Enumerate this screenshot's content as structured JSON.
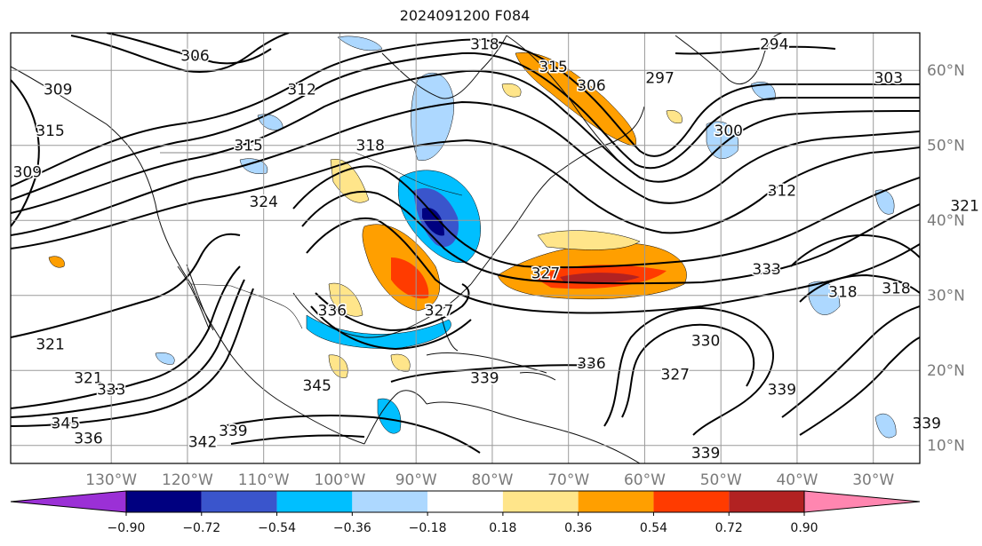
{
  "title": "2024091200 F084",
  "map": {
    "lon_ticks": [
      {
        "lon": -130,
        "label": "130°W"
      },
      {
        "lon": -120,
        "label": "120°W"
      },
      {
        "lon": -110,
        "label": "110°W"
      },
      {
        "lon": -100,
        "label": "100°W"
      },
      {
        "lon": -90,
        "label": "90°W"
      },
      {
        "lon": -80,
        "label": "80°W"
      },
      {
        "lon": -70,
        "label": "70°W"
      },
      {
        "lon": -60,
        "label": "60°W"
      },
      {
        "lon": -50,
        "label": "50°W"
      },
      {
        "lon": -40,
        "label": "40°W"
      },
      {
        "lon": -30,
        "label": "30°W"
      }
    ],
    "lat_ticks": [
      {
        "lat": 60,
        "label": "60°N"
      },
      {
        "lat": 50,
        "label": "50°N"
      },
      {
        "lat": 40,
        "label": "40°N"
      },
      {
        "lat": 30,
        "label": "30°N"
      },
      {
        "lat": 20,
        "label": "20°N"
      },
      {
        "lat": 10,
        "label": "10°N"
      }
    ],
    "contour_labels": [
      {
        "text": "306",
        "lon": -119,
        "lat": 62
      },
      {
        "text": "312",
        "lon": -105,
        "lat": 57.5
      },
      {
        "text": "315",
        "lon": -112,
        "lat": 50
      },
      {
        "text": "318",
        "lon": -96,
        "lat": 50
      },
      {
        "text": "324",
        "lon": -110,
        "lat": 42.5
      },
      {
        "text": "309",
        "lon": -141,
        "lat": 46.5
      },
      {
        "text": "309",
        "lon": -137,
        "lat": 57.5
      },
      {
        "text": "315",
        "lon": -138,
        "lat": 52
      },
      {
        "text": "318",
        "lon": -81,
        "lat": 63.5
      },
      {
        "text": "315",
        "lon": -72,
        "lat": 60.5
      },
      {
        "text": "306",
        "lon": -67,
        "lat": 58
      },
      {
        "text": "297",
        "lon": -58,
        "lat": 59
      },
      {
        "text": "294",
        "lon": -43,
        "lat": 63.5
      },
      {
        "text": "303",
        "lon": -28,
        "lat": 59
      },
      {
        "text": "300",
        "lon": -49,
        "lat": 52
      },
      {
        "text": "312",
        "lon": -42,
        "lat": 44
      },
      {
        "text": "321",
        "lon": -18,
        "lat": 42
      },
      {
        "text": "318",
        "lon": -27,
        "lat": 31
      },
      {
        "text": "318",
        "lon": -34,
        "lat": 30.5
      },
      {
        "text": "333",
        "lon": -44,
        "lat": 33.5
      },
      {
        "text": "327",
        "lon": -73,
        "lat": 33
      },
      {
        "text": "336",
        "lon": -101,
        "lat": 28
      },
      {
        "text": "327",
        "lon": -87,
        "lat": 28
      },
      {
        "text": "330",
        "lon": -52,
        "lat": 24
      },
      {
        "text": "327",
        "lon": -56,
        "lat": 19.5
      },
      {
        "text": "336",
        "lon": -67,
        "lat": 21
      },
      {
        "text": "339",
        "lon": -81,
        "lat": 19
      },
      {
        "text": "339",
        "lon": -42,
        "lat": 17.5
      },
      {
        "text": "339",
        "lon": -23,
        "lat": 13
      },
      {
        "text": "345",
        "lon": -103,
        "lat": 18
      },
      {
        "text": "339",
        "lon": -114,
        "lat": 12
      },
      {
        "text": "342",
        "lon": -118,
        "lat": 10.5
      },
      {
        "text": "339",
        "lon": -52,
        "lat": 9
      },
      {
        "text": "321",
        "lon": -138,
        "lat": 23.5
      },
      {
        "text": "321",
        "lon": -133,
        "lat": 19
      },
      {
        "text": "333",
        "lon": -130,
        "lat": 17.5
      },
      {
        "text": "345",
        "lon": -136,
        "lat": 13
      },
      {
        "text": "336",
        "lon": -133,
        "lat": 11
      }
    ]
  },
  "colorbar": {
    "colors": [
      "#9b30d6",
      "#000080",
      "#3a55cc",
      "#00bfff",
      "#add8ff",
      "#ffffff",
      "#ffe58a",
      "#ff9f00",
      "#ff3b00",
      "#b22222",
      "#ff86b0"
    ],
    "tick_labels": [
      "−0.90",
      "−0.72",
      "−0.54",
      "−0.36",
      "−0.18",
      "0.18",
      "0.36",
      "0.54",
      "0.72",
      "0.90"
    ]
  },
  "colors": {
    "contour": "#000000",
    "coast": "#111111",
    "grid": "#9a9a9a",
    "tick_text": "#7a7a7a"
  }
}
